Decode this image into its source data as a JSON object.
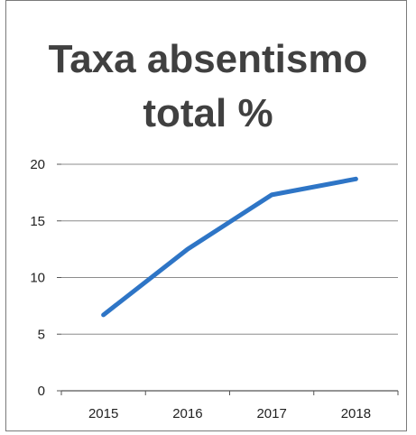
{
  "chart_data": {
    "type": "line",
    "title_lines": [
      "Taxa absentismo",
      "total %"
    ],
    "categories": [
      "2015",
      "2016",
      "2017",
      "2018"
    ],
    "series": [
      {
        "values": [
          6.7,
          12.5,
          17.3,
          18.7
        ]
      }
    ],
    "ylim": [
      0,
      20
    ],
    "yticks": [
      0,
      5,
      10,
      15,
      20
    ],
    "xlabel": "",
    "ylabel": "",
    "grid": "horizontal",
    "legend": "none",
    "line_color": "#2e75c6",
    "grid_color": "#8c8c8c"
  }
}
